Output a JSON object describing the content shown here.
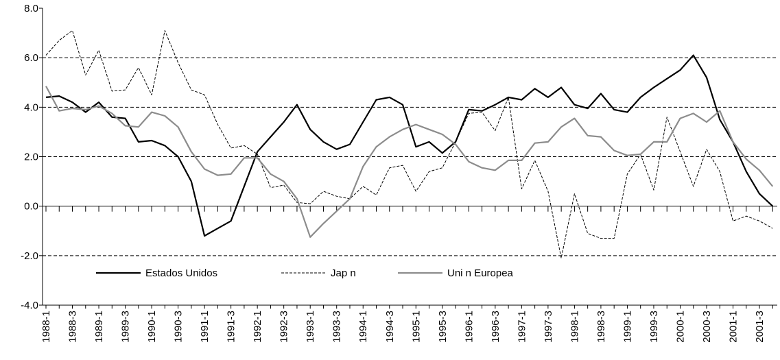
{
  "chart_data": {
    "type": "line",
    "categories": [
      "1988-1",
      null,
      "1988-3",
      null,
      "1989-1",
      null,
      "1989-3",
      null,
      "1990-1",
      null,
      "1990-3",
      null,
      "1991-1",
      null,
      "1991-3",
      null,
      "1992-1",
      null,
      "1992-3",
      null,
      "1993-1",
      null,
      "1993-3",
      null,
      "1994-1",
      null,
      "1994-3",
      null,
      "1995-1",
      null,
      "1995-3",
      null,
      "1996-1",
      null,
      "1996-3",
      null,
      "1997-1",
      null,
      "1997-3",
      null,
      "1998-1",
      null,
      "1998-3",
      null,
      "1999-1",
      null,
      "1999-3",
      null,
      "2000-1",
      null,
      "2000-3",
      null,
      "2001-1",
      null,
      "2001-3",
      null
    ],
    "series": [
      {
        "name": "Estados Unidos",
        "color": "#000000",
        "dash": "solid",
        "values": [
          4.4,
          4.45,
          4.2,
          3.8,
          4.2,
          3.6,
          3.55,
          2.6,
          2.65,
          2.45,
          2.0,
          1.0,
          -1.2,
          -0.9,
          -0.6,
          0.8,
          2.2,
          2.8,
          3.4,
          4.1,
          3.1,
          2.6,
          2.3,
          2.5,
          3.4,
          4.3,
          4.4,
          4.1,
          2.4,
          2.6,
          2.15,
          2.6,
          3.9,
          3.85,
          4.1,
          4.4,
          4.3,
          4.75,
          4.4,
          4.8,
          4.1,
          3.95,
          4.55,
          3.9,
          3.8,
          4.4,
          4.8,
          5.15,
          5.5,
          6.1,
          5.2,
          3.5,
          2.6,
          1.4,
          0.5,
          0.0
        ]
      },
      {
        "name": "Jap n",
        "color": "#000000",
        "dash": "dashed",
        "values": [
          6.1,
          6.7,
          7.1,
          5.3,
          6.3,
          4.65,
          4.7,
          5.6,
          4.5,
          7.1,
          5.8,
          4.7,
          4.5,
          3.3,
          2.35,
          2.45,
          2.1,
          0.75,
          0.85,
          0.15,
          0.1,
          0.6,
          0.4,
          0.3,
          0.8,
          0.45,
          1.55,
          1.65,
          0.6,
          1.4,
          1.55,
          2.6,
          3.75,
          3.8,
          3.05,
          4.4,
          0.7,
          1.85,
          0.6,
          -2.1,
          0.5,
          -1.1,
          -1.3,
          -1.3,
          1.3,
          2.1,
          0.65,
          3.6,
          2.2,
          0.8,
          2.3,
          1.4,
          -0.6,
          -0.4,
          -0.6,
          -0.9
        ]
      },
      {
        "name": "Uni n Europea",
        "color": "#8c8c8c",
        "dash": "solid",
        "values": [
          4.85,
          3.85,
          3.95,
          3.9,
          4.05,
          3.75,
          3.25,
          3.2,
          3.8,
          3.65,
          3.2,
          2.2,
          1.5,
          1.25,
          1.3,
          1.95,
          1.95,
          1.3,
          1.0,
          0.3,
          -1.25,
          -0.7,
          -0.2,
          0.3,
          1.6,
          2.4,
          2.8,
          3.1,
          3.3,
          3.1,
          2.9,
          2.5,
          1.8,
          1.55,
          1.45,
          1.85,
          1.85,
          2.55,
          2.6,
          3.2,
          3.55,
          2.85,
          2.8,
          2.25,
          2.05,
          2.1,
          2.6,
          2.6,
          3.55,
          3.75,
          3.4,
          3.85,
          2.6,
          1.9,
          1.45,
          0.8
        ]
      }
    ],
    "ylim": [
      -4,
      8
    ],
    "yticks": [
      {
        "value": -4,
        "label": "-4.0"
      },
      {
        "value": -2,
        "label": "-2.0"
      },
      {
        "value": 0,
        "label": "0.0"
      },
      {
        "value": 2,
        "label": "2.0"
      },
      {
        "value": 4,
        "label": "4.0"
      },
      {
        "value": 6,
        "label": "6.0"
      },
      {
        "value": 8,
        "label": "8.0"
      }
    ],
    "grid": true
  }
}
